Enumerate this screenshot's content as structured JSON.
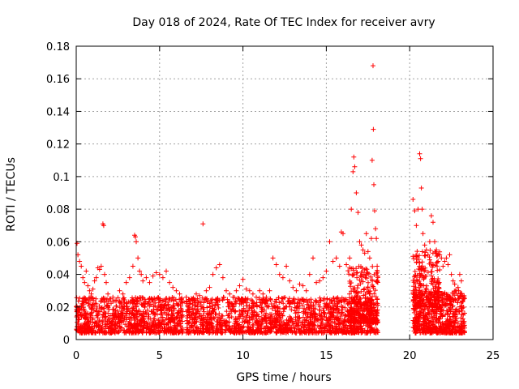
{
  "chart_data": {
    "type": "scatter",
    "title": "Day 018 of 2024, Rate Of TEC Index for receiver avry",
    "xlabel": "GPS time / hours",
    "ylabel": "ROTI / TECUs",
    "xlim": [
      0,
      25
    ],
    "ylim": [
      0,
      0.18
    ],
    "xticks": [
      0,
      5,
      10,
      15,
      20,
      25
    ],
    "yticks": [
      0,
      0.02,
      0.04,
      0.06,
      0.08,
      0.1,
      0.12,
      0.14,
      0.16,
      0.18
    ],
    "xtick_labels": [
      "0",
      "5",
      "10",
      "15",
      "20",
      "25"
    ],
    "ytick_labels": [
      "0",
      "0.02",
      "0.04",
      "0.06",
      "0.08",
      "0.1",
      "0.12",
      "0.14",
      "0.16",
      "0.18"
    ],
    "grid": true,
    "marker": "+",
    "color": "#ff0000",
    "series": [
      {
        "name": "ROTI",
        "points": [
          [
            0.05,
            0.059
          ],
          [
            0.1,
            0.052
          ],
          [
            0.2,
            0.048
          ],
          [
            0.3,
            0.045
          ],
          [
            0.4,
            0.038
          ],
          [
            0.5,
            0.035
          ],
          [
            0.6,
            0.042
          ],
          [
            0.7,
            0.033
          ],
          [
            0.8,
            0.03
          ],
          [
            0.9,
            0.028
          ],
          [
            1.0,
            0.031
          ],
          [
            1.1,
            0.036
          ],
          [
            1.2,
            0.038
          ],
          [
            1.3,
            0.044
          ],
          [
            1.4,
            0.043
          ],
          [
            1.5,
            0.045
          ],
          [
            1.6,
            0.071
          ],
          [
            1.65,
            0.07
          ],
          [
            1.7,
            0.04
          ],
          [
            1.8,
            0.035
          ],
          [
            1.9,
            0.028
          ],
          [
            2.0,
            0.025
          ],
          [
            2.2,
            0.026
          ],
          [
            2.4,
            0.024
          ],
          [
            2.6,
            0.03
          ],
          [
            2.8,
            0.028
          ],
          [
            3.0,
            0.035
          ],
          [
            3.2,
            0.038
          ],
          [
            3.4,
            0.045
          ],
          [
            3.5,
            0.064
          ],
          [
            3.55,
            0.063
          ],
          [
            3.6,
            0.06
          ],
          [
            3.7,
            0.05
          ],
          [
            3.8,
            0.042
          ],
          [
            3.9,
            0.04
          ],
          [
            4.0,
            0.036
          ],
          [
            4.2,
            0.038
          ],
          [
            4.4,
            0.035
          ],
          [
            4.6,
            0.039
          ],
          [
            4.8,
            0.041
          ],
          [
            5.0,
            0.04
          ],
          [
            5.2,
            0.038
          ],
          [
            5.4,
            0.042
          ],
          [
            5.6,
            0.035
          ],
          [
            5.8,
            0.032
          ],
          [
            6.0,
            0.03
          ],
          [
            6.2,
            0.028
          ],
          [
            6.6,
            0.026
          ],
          [
            6.8,
            0.022
          ],
          [
            7.0,
            0.025
          ],
          [
            7.2,
            0.028
          ],
          [
            7.4,
            0.027
          ],
          [
            7.6,
            0.071
          ],
          [
            7.8,
            0.03
          ],
          [
            8.0,
            0.032
          ],
          [
            8.2,
            0.04
          ],
          [
            8.4,
            0.044
          ],
          [
            8.6,
            0.046
          ],
          [
            8.8,
            0.038
          ],
          [
            9.0,
            0.03
          ],
          [
            9.2,
            0.028
          ],
          [
            9.4,
            0.026
          ],
          [
            9.6,
            0.03
          ],
          [
            9.8,
            0.033
          ],
          [
            10.0,
            0.037
          ],
          [
            10.2,
            0.031
          ],
          [
            10.4,
            0.03
          ],
          [
            10.6,
            0.028
          ],
          [
            10.8,
            0.026
          ],
          [
            11.0,
            0.03
          ],
          [
            11.2,
            0.028
          ],
          [
            11.4,
            0.026
          ],
          [
            11.6,
            0.03
          ],
          [
            11.8,
            0.05
          ],
          [
            12.0,
            0.046
          ],
          [
            12.2,
            0.04
          ],
          [
            12.4,
            0.038
          ],
          [
            12.6,
            0.045
          ],
          [
            12.8,
            0.036
          ],
          [
            13.0,
            0.032
          ],
          [
            13.2,
            0.03
          ],
          [
            13.4,
            0.034
          ],
          [
            13.6,
            0.033
          ],
          [
            13.8,
            0.03
          ],
          [
            14.0,
            0.04
          ],
          [
            14.2,
            0.05
          ],
          [
            14.4,
            0.035
          ],
          [
            14.6,
            0.036
          ],
          [
            14.8,
            0.038
          ],
          [
            15.0,
            0.042
          ],
          [
            15.2,
            0.06
          ],
          [
            15.4,
            0.048
          ],
          [
            15.6,
            0.05
          ],
          [
            15.8,
            0.045
          ],
          [
            15.9,
            0.066
          ],
          [
            16.0,
            0.065
          ],
          [
            16.2,
            0.046
          ],
          [
            16.4,
            0.05
          ],
          [
            16.5,
            0.08
          ],
          [
            16.6,
            0.103
          ],
          [
            16.65,
            0.112
          ],
          [
            16.7,
            0.106
          ],
          [
            16.8,
            0.09
          ],
          [
            16.9,
            0.078
          ],
          [
            17.0,
            0.06
          ],
          [
            17.1,
            0.058
          ],
          [
            17.2,
            0.055
          ],
          [
            17.3,
            0.053
          ],
          [
            17.4,
            0.065
          ],
          [
            17.5,
            0.054
          ],
          [
            17.6,
            0.05
          ],
          [
            17.7,
            0.062
          ],
          [
            17.75,
            0.11
          ],
          [
            17.8,
            0.168
          ],
          [
            17.82,
            0.129
          ],
          [
            17.85,
            0.095
          ],
          [
            17.9,
            0.079
          ],
          [
            17.95,
            0.068
          ],
          [
            18.0,
            0.062
          ],
          [
            18.05,
            0.045
          ],
          [
            20.2,
            0.086
          ],
          [
            20.3,
            0.079
          ],
          [
            20.4,
            0.07
          ],
          [
            20.5,
            0.08
          ],
          [
            20.6,
            0.114
          ],
          [
            20.65,
            0.111
          ],
          [
            20.7,
            0.093
          ],
          [
            20.75,
            0.08
          ],
          [
            20.8,
            0.065
          ],
          [
            20.9,
            0.058
          ],
          [
            21.0,
            0.055
          ],
          [
            21.1,
            0.052
          ],
          [
            21.2,
            0.06
          ],
          [
            21.3,
            0.076
          ],
          [
            21.4,
            0.072
          ],
          [
            21.5,
            0.06
          ],
          [
            21.6,
            0.055
          ],
          [
            21.7,
            0.048
          ],
          [
            21.8,
            0.052
          ],
          [
            21.9,
            0.05
          ],
          [
            22.0,
            0.045
          ],
          [
            22.1,
            0.048
          ],
          [
            22.2,
            0.05
          ],
          [
            22.3,
            0.046
          ],
          [
            22.4,
            0.052
          ],
          [
            22.5,
            0.04
          ],
          [
            22.6,
            0.036
          ],
          [
            22.7,
            0.034
          ],
          [
            22.8,
            0.03
          ],
          [
            22.9,
            0.032
          ],
          [
            23.0,
            0.04
          ],
          [
            23.1,
            0.036
          ],
          [
            23.2,
            0.025
          ],
          [
            23.25,
            0.01
          ]
        ],
        "dense_segments": [
          {
            "x": [
              0.0,
              6.4
            ],
            "y": [
              0.004,
              0.026
            ],
            "count": 900
          },
          {
            "x": [
              6.6,
              18.1
            ],
            "y": [
              0.004,
              0.026
            ],
            "count": 1500
          },
          {
            "x": [
              16.3,
              18.1
            ],
            "y": [
              0.01,
              0.045
            ],
            "count": 260
          },
          {
            "x": [
              20.2,
              23.3
            ],
            "y": [
              0.004,
              0.03
            ],
            "count": 600
          },
          {
            "x": [
              20.2,
              21.8
            ],
            "y": [
              0.02,
              0.055
            ],
            "count": 220
          }
        ]
      }
    ]
  }
}
